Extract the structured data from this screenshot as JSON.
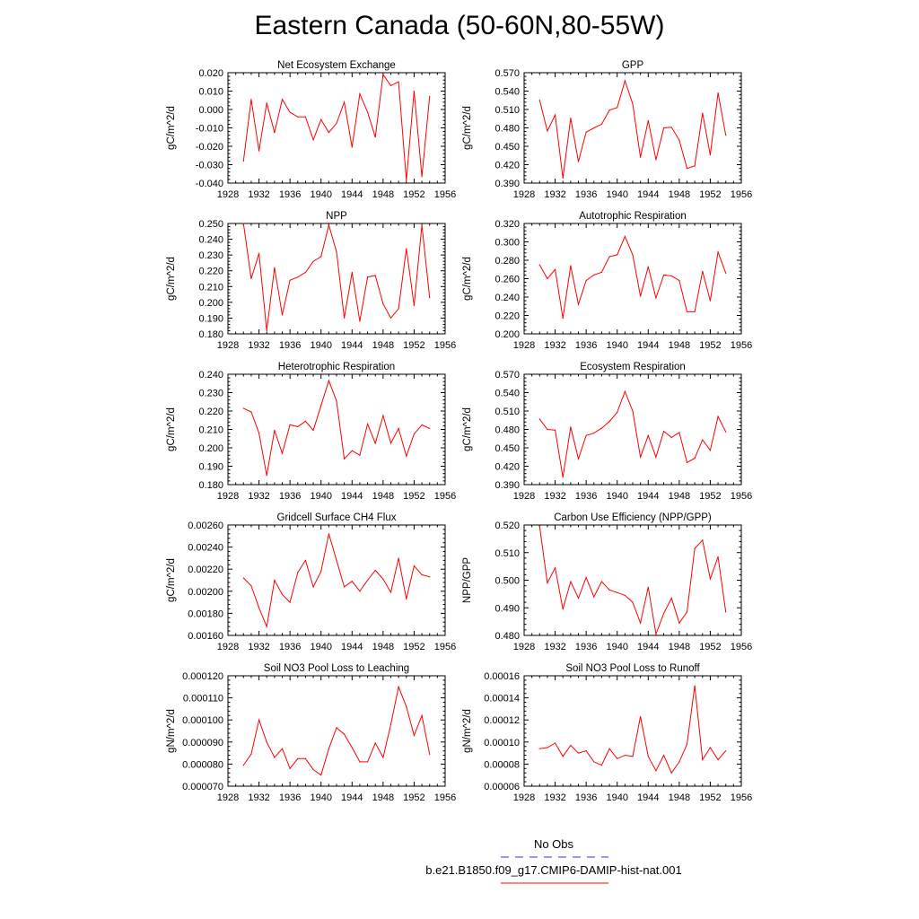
{
  "page": {
    "title": "Eastern Canada (50-60N,80-55W)"
  },
  "legend": {
    "entries": [
      {
        "label": "No Obs",
        "color": "#3333cc",
        "dash": true
      },
      {
        "label": "b.e21.B1850.f09_g17.CMIP6-DAMIP-hist-nat.001",
        "color": "#ff0000",
        "dash": false
      }
    ]
  },
  "series_color": "#ff0000",
  "chart_data": [
    {
      "type": "line",
      "title": "Net Ecosystem Exchange",
      "ylabel": "gC/m^2/d",
      "xlim": [
        1928,
        1956
      ],
      "xticks": [
        "1928",
        "1932",
        "1936",
        "1940",
        "1944",
        "1948",
        "1952",
        "1956"
      ],
      "ylim": [
        -0.04,
        0.02
      ],
      "yticks": [
        "-0.040",
        "-0.030",
        "-0.020",
        "-0.010",
        "0.000",
        "0.010",
        "0.020"
      ],
      "x": [
        1930,
        1931,
        1932,
        1933,
        1934,
        1935,
        1936,
        1937,
        1938,
        1939,
        1940,
        1941,
        1942,
        1943,
        1944,
        1945,
        1946,
        1947,
        1948,
        1949,
        1950,
        1951,
        1952,
        1953,
        1954
      ],
      "values": [
        -0.028,
        0.0055,
        -0.0225,
        0.0035,
        -0.0125,
        0.0055,
        -0.0015,
        -0.004,
        -0.004,
        -0.0165,
        -0.0055,
        -0.0125,
        -0.0075,
        0.004,
        -0.0205,
        0.0085,
        -0.0015,
        -0.015,
        0.019,
        0.013,
        0.015,
        -0.0385,
        0.01,
        -0.0365,
        0.007
      ]
    },
    {
      "type": "line",
      "title": "GPP",
      "ylabel": "gC/m^2/d",
      "xlim": [
        1928,
        1956
      ],
      "xticks": [
        "1928",
        "1932",
        "1936",
        "1940",
        "1944",
        "1948",
        "1952",
        "1956"
      ],
      "ylim": [
        0.39,
        0.57
      ],
      "yticks": [
        "0.390",
        "0.420",
        "0.450",
        "0.480",
        "0.510",
        "0.540",
        "0.570"
      ],
      "x": [
        1930,
        1931,
        1932,
        1933,
        1934,
        1935,
        1936,
        1937,
        1938,
        1939,
        1940,
        1941,
        1942,
        1943,
        1944,
        1945,
        1946,
        1947,
        1948,
        1949,
        1950,
        1951,
        1952,
        1953,
        1954
      ],
      "values": [
        0.525,
        0.475,
        0.501,
        0.398,
        0.496,
        0.425,
        0.473,
        0.48,
        0.486,
        0.509,
        0.513,
        0.557,
        0.519,
        0.432,
        0.492,
        0.428,
        0.48,
        0.481,
        0.46,
        0.414,
        0.418,
        0.504,
        0.436,
        0.537,
        0.468
      ]
    },
    {
      "type": "line",
      "title": "NPP",
      "ylabel": "gC/m^2/d",
      "xlim": [
        1928,
        1956
      ],
      "xticks": [
        "1928",
        "1932",
        "1936",
        "1940",
        "1944",
        "1948",
        "1952",
        "1956"
      ],
      "ylim": [
        0.18,
        0.25
      ],
      "yticks": [
        "0.180",
        "0.190",
        "0.200",
        "0.210",
        "0.220",
        "0.230",
        "0.240",
        "0.250"
      ],
      "x": [
        1930,
        1931,
        1932,
        1933,
        1934,
        1935,
        1936,
        1937,
        1938,
        1939,
        1940,
        1941,
        1942,
        1943,
        1944,
        1945,
        1946,
        1947,
        1948,
        1949,
        1950,
        1951,
        1952,
        1953,
        1954
      ],
      "values": [
        0.25,
        0.215,
        0.231,
        0.182,
        0.222,
        0.192,
        0.214,
        0.216,
        0.219,
        0.226,
        0.229,
        0.249,
        0.232,
        0.19,
        0.219,
        0.188,
        0.216,
        0.217,
        0.199,
        0.19,
        0.196,
        0.234,
        0.198,
        0.249,
        0.203
      ]
    },
    {
      "type": "line",
      "title": "Autotrophic Respiration",
      "ylabel": "gC/m^2/d",
      "xlim": [
        1928,
        1956
      ],
      "xticks": [
        "1928",
        "1932",
        "1936",
        "1940",
        "1944",
        "1948",
        "1952",
        "1956"
      ],
      "ylim": [
        0.2,
        0.32
      ],
      "yticks": [
        "0.200",
        "0.220",
        "0.240",
        "0.260",
        "0.280",
        "0.300",
        "0.320"
      ],
      "x": [
        1930,
        1931,
        1932,
        1933,
        1934,
        1935,
        1936,
        1937,
        1938,
        1939,
        1940,
        1941,
        1942,
        1943,
        1944,
        1945,
        1946,
        1947,
        1948,
        1949,
        1950,
        1951,
        1952,
        1953,
        1954
      ],
      "values": [
        0.275,
        0.26,
        0.27,
        0.217,
        0.274,
        0.232,
        0.258,
        0.264,
        0.267,
        0.284,
        0.286,
        0.306,
        0.286,
        0.241,
        0.273,
        0.239,
        0.264,
        0.263,
        0.258,
        0.224,
        0.224,
        0.268,
        0.236,
        0.289,
        0.266
      ]
    },
    {
      "type": "line",
      "title": "Heterotrophic Respiration",
      "ylabel": "gC/m^2/d",
      "xlim": [
        1928,
        1956
      ],
      "xticks": [
        "1928",
        "1932",
        "1936",
        "1940",
        "1944",
        "1948",
        "1952",
        "1956"
      ],
      "ylim": [
        0.18,
        0.24
      ],
      "yticks": [
        "0.180",
        "0.190",
        "0.200",
        "0.210",
        "0.220",
        "0.230",
        "0.240"
      ],
      "x": [
        1930,
        1931,
        1932,
        1933,
        1934,
        1935,
        1936,
        1937,
        1938,
        1939,
        1940,
        1941,
        1942,
        1943,
        1944,
        1945,
        1946,
        1947,
        1948,
        1949,
        1950,
        1951,
        1952,
        1953,
        1954
      ],
      "values": [
        0.2215,
        0.2195,
        0.208,
        0.185,
        0.2095,
        0.197,
        0.2125,
        0.2115,
        0.2145,
        0.2095,
        0.223,
        0.2365,
        0.2255,
        0.194,
        0.1985,
        0.196,
        0.213,
        0.2025,
        0.2175,
        0.2025,
        0.2105,
        0.1955,
        0.2075,
        0.2125,
        0.2105
      ]
    },
    {
      "type": "line",
      "title": "Ecosystem Respiration",
      "ylabel": "gC/m^2/d",
      "xlim": [
        1928,
        1956
      ],
      "xticks": [
        "1928",
        "1932",
        "1936",
        "1940",
        "1944",
        "1948",
        "1952",
        "1956"
      ],
      "ylim": [
        0.39,
        0.57
      ],
      "yticks": [
        "0.390",
        "0.420",
        "0.450",
        "0.480",
        "0.510",
        "0.540",
        "0.570"
      ],
      "x": [
        1930,
        1931,
        1932,
        1933,
        1934,
        1935,
        1936,
        1937,
        1938,
        1939,
        1940,
        1941,
        1942,
        1943,
        1944,
        1945,
        1946,
        1947,
        1948,
        1949,
        1950,
        1951,
        1952,
        1953,
        1954
      ],
      "values": [
        0.497,
        0.48,
        0.479,
        0.402,
        0.484,
        0.432,
        0.47,
        0.474,
        0.482,
        0.493,
        0.508,
        0.542,
        0.51,
        0.435,
        0.47,
        0.435,
        0.477,
        0.467,
        0.475,
        0.426,
        0.433,
        0.463,
        0.446,
        0.501,
        0.476
      ]
    },
    {
      "type": "line",
      "title": "Gridcell Surface CH4 Flux",
      "ylabel": "gC/m^2/d",
      "xlim": [
        1928,
        1956
      ],
      "xticks": [
        "1928",
        "1932",
        "1936",
        "1940",
        "1944",
        "1948",
        "1952",
        "1956"
      ],
      "ylim": [
        0.0016,
        0.0026
      ],
      "yticks": [
        "0.00160",
        "0.00180",
        "0.00200",
        "0.00220",
        "0.00240",
        "0.00260"
      ],
      "x": [
        1930,
        1931,
        1932,
        1933,
        1934,
        1935,
        1936,
        1937,
        1938,
        1939,
        1940,
        1941,
        1942,
        1943,
        1944,
        1945,
        1946,
        1947,
        1948,
        1949,
        1950,
        1951,
        1952,
        1953,
        1954
      ],
      "values": [
        0.00212,
        0.00205,
        0.00185,
        0.00168,
        0.0021,
        0.00197,
        0.0019,
        0.00217,
        0.00228,
        0.00204,
        0.00218,
        0.00252,
        0.00228,
        0.00204,
        0.00209,
        0.002,
        0.0021,
        0.00219,
        0.00211,
        0.00199,
        0.0023,
        0.00193,
        0.00223,
        0.00215,
        0.00213
      ]
    },
    {
      "type": "line",
      "title": "Carbon Use Efficiency (NPP/GPP)",
      "ylabel": "NPP/GPP",
      "xlim": [
        1928,
        1956
      ],
      "xticks": [
        "1928",
        "1932",
        "1936",
        "1940",
        "1944",
        "1948",
        "1952",
        "1956"
      ],
      "ylim": [
        0.48,
        0.52
      ],
      "yticks": [
        "0.480",
        "0.490",
        "0.500",
        "0.510",
        "0.520"
      ],
      "x": [
        1930,
        1931,
        1932,
        1933,
        1934,
        1935,
        1936,
        1937,
        1938,
        1939,
        1940,
        1941,
        1942,
        1943,
        1944,
        1945,
        1946,
        1947,
        1948,
        1949,
        1950,
        1951,
        1952,
        1953,
        1954
      ],
      "values": [
        0.5195,
        0.499,
        0.5045,
        0.4895,
        0.4995,
        0.4935,
        0.501,
        0.494,
        0.4995,
        0.4965,
        0.4955,
        0.4945,
        0.492,
        0.4845,
        0.4975,
        0.4805,
        0.488,
        0.4935,
        0.4845,
        0.4885,
        0.5115,
        0.5145,
        0.5005,
        0.5085,
        0.4885
      ]
    },
    {
      "type": "line",
      "title": "Soil NO3 Pool Loss to Leaching",
      "ylabel": "gN/m^2/d",
      "xlim": [
        1928,
        1956
      ],
      "xticks": [
        "1928",
        "1932",
        "1936",
        "1940",
        "1944",
        "1948",
        "1952",
        "1956"
      ],
      "ylim": [
        7e-05,
        0.00012
      ],
      "yticks": [
        "0.000070",
        "0.000080",
        "0.000090",
        "0.000100",
        "0.000110",
        "0.000120"
      ],
      "x": [
        1930,
        1931,
        1932,
        1933,
        1934,
        1935,
        1936,
        1937,
        1938,
        1939,
        1940,
        1941,
        1942,
        1943,
        1944,
        1945,
        1946,
        1947,
        1948,
        1949,
        1950,
        1951,
        1952,
        1953,
        1954
      ],
      "values": [
        7.95e-05,
        8.45e-05,
        0.0001,
        9e-05,
        8.3e-05,
        8.7e-05,
        7.8e-05,
        8.25e-05,
        8.25e-05,
        7.75e-05,
        7.5e-05,
        8.7e-05,
        9.65e-05,
        9.35e-05,
        8.75e-05,
        8.1e-05,
        8.1e-05,
        8.95e-05,
        8.3e-05,
        9.8e-05,
        0.000115,
        0.000106,
        9.3e-05,
        0.000102,
        8.45e-05
      ]
    },
    {
      "type": "line",
      "title": "Soil NO3 Pool Loss to Runoff",
      "ylabel": "gN/m^2/d",
      "xlim": [
        1928,
        1956
      ],
      "xticks": [
        "1928",
        "1932",
        "1936",
        "1940",
        "1944",
        "1948",
        "1952",
        "1956"
      ],
      "ylim": [
        6e-05,
        0.00016
      ],
      "yticks": [
        "0.00006",
        "0.00008",
        "0.00010",
        "0.00012",
        "0.00014",
        "0.00016"
      ],
      "x": [
        1930,
        1931,
        1932,
        1933,
        1934,
        1935,
        1936,
        1937,
        1938,
        1939,
        1940,
        1941,
        1942,
        1943,
        1944,
        1945,
        1946,
        1947,
        1948,
        1949,
        1950,
        1951,
        1952,
        1953,
        1954
      ],
      "values": [
        9.4e-05,
        9.5e-05,
        9.9e-05,
        8.7e-05,
        9.7e-05,
        9e-05,
        9.2e-05,
        8.2e-05,
        7.9e-05,
        9.4e-05,
        8.5e-05,
        8.8e-05,
        8.7e-05,
        0.000123,
        8.7e-05,
        7.4e-05,
        8.8e-05,
        7.2e-05,
        8.2e-05,
        9.8e-05,
        0.000151,
        8.4e-05,
        9.5e-05,
        8.4e-05,
        9.2e-05
      ]
    }
  ]
}
